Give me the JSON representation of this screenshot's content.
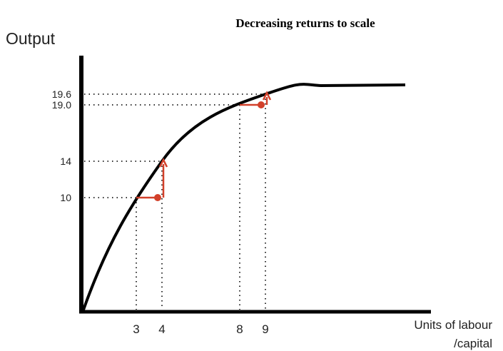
{
  "chart_data": {
    "type": "line",
    "title": "Decreasing returns to scale",
    "ylabel": "Output",
    "xlabel": [
      "Units of labour",
      "/capital"
    ],
    "x_ticks": [
      "3",
      "4",
      "8",
      "9"
    ],
    "y_ticks": [
      "10",
      "14",
      "19.0",
      "19.6"
    ],
    "points": [
      {
        "x": 3,
        "y": 10
      },
      {
        "x": 4,
        "y": 14
      },
      {
        "x": 8,
        "y": 19.0
      },
      {
        "x": 9,
        "y": 19.6
      }
    ],
    "grid": false,
    "colors": {
      "curve": "#000000",
      "annotation": "#d2402a",
      "guides": "#333333"
    }
  }
}
